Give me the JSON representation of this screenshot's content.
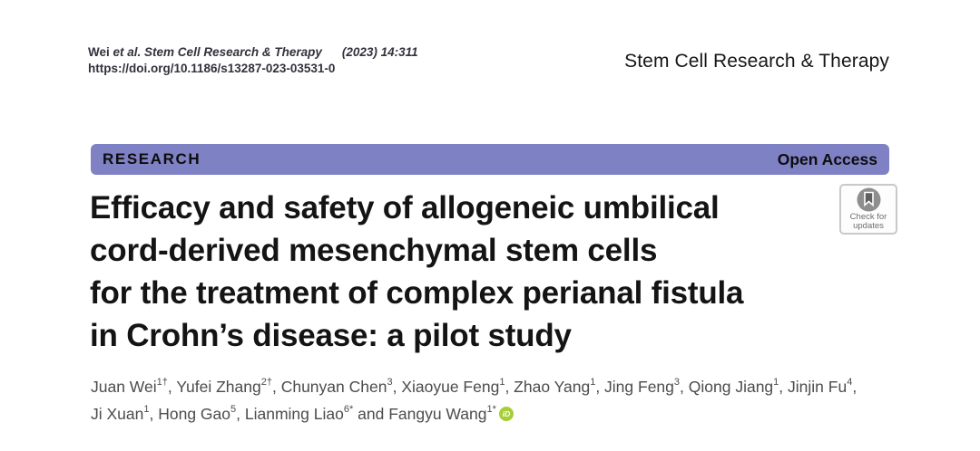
{
  "colors": {
    "banner": "#7f81c5",
    "orcid": "#a6ce39",
    "title-text": "#141414",
    "author-text": "#4c4c4c",
    "citation-text": "#32323d"
  },
  "header": {
    "citation_author": "Wei",
    "citation_journal": "et al. Stem Cell Research & Therapy",
    "citation_issue": "(2023) 14:311",
    "doi": "https://doi.org/10.1186/s13287-023-03531-0",
    "journal_name": "Stem Cell Research & Therapy"
  },
  "banner": {
    "left_label": "RESEARCH",
    "right_label": "Open Access"
  },
  "update_badge": {
    "line1": "Check for",
    "line2": "updates"
  },
  "title": {
    "lines": [
      "Efficacy and safety of allogeneic umbilical",
      "cord-derived mesenchymal stem cells",
      "for the treatment of complex perianal fistula",
      "in Crohn’s disease: a pilot study"
    ]
  },
  "authors": {
    "orcid_label": "iD",
    "lines": [
      {
        "items": [
          {
            "name": "Juan Wei",
            "sup": "1†",
            "after": ", "
          },
          {
            "name": "Yufei Zhang",
            "sup": "2†",
            "after": ", "
          },
          {
            "name": "Chunyan Chen",
            "sup": "3",
            "after": ", "
          },
          {
            "name": "Xiaoyue Feng",
            "sup": "1",
            "after": ", "
          },
          {
            "name": "Zhao Yang",
            "sup": "1",
            "after": ", "
          },
          {
            "name": "Jing Feng",
            "sup": "3",
            "after": ", "
          },
          {
            "name": "Qiong Jiang",
            "sup": "1",
            "after": ", "
          },
          {
            "name": "Jinjin Fu",
            "sup": "4",
            "after": ","
          }
        ]
      },
      {
        "items": [
          {
            "name": "Ji Xuan",
            "sup": "1",
            "after": ", "
          },
          {
            "name": "Hong Gao",
            "sup": "5",
            "after": ", "
          },
          {
            "name": "Lianming Liao",
            "sup": "6*",
            "after": " and "
          },
          {
            "name": "Fangyu Wang",
            "sup": "1*",
            "after": "",
            "orcid": true
          }
        ]
      }
    ]
  }
}
